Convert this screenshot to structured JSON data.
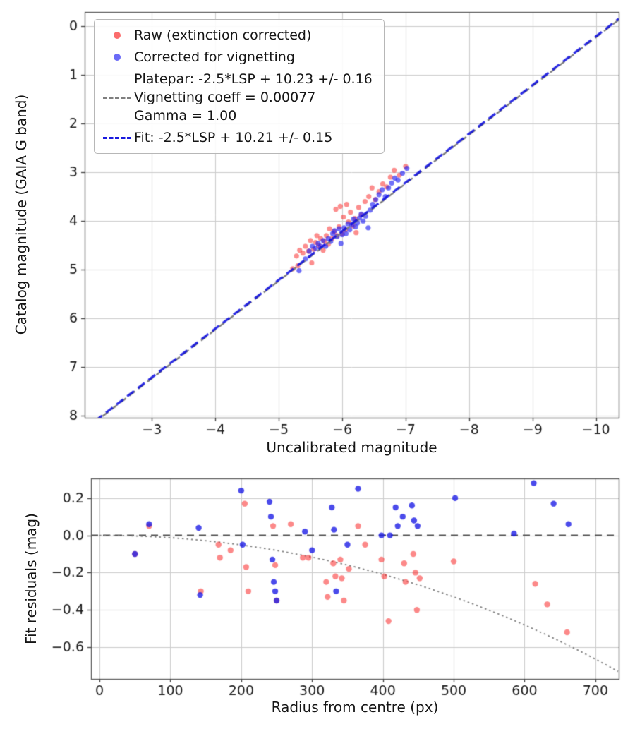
{
  "figure": {
    "background": "#ffffff",
    "grid_color": "#cccccc",
    "spine_color": "#555555",
    "tick_color": "#444444",
    "text_color": "#151515"
  },
  "chart_data": [
    {
      "type": "scatter",
      "xlabel": "Uncalibrated magnitude",
      "ylabel": "Catalog magnitude (GAIA G band)",
      "xlim": [
        -1.94,
        -10.36
      ],
      "ylim": [
        -0.29,
        8.04
      ],
      "y_inverted": true,
      "grid": true,
      "xticks": [
        -3,
        -4,
        -5,
        -6,
        -7,
        -8,
        -9,
        -10
      ],
      "xtick_labels": [
        "−3",
        "−4",
        "−5",
        "−6",
        "−7",
        "−8",
        "−9",
        "−10"
      ],
      "yticks": [
        0,
        1,
        2,
        3,
        4,
        5,
        6,
        7,
        8
      ],
      "ytick_labels": [
        "0",
        "1",
        "2",
        "3",
        "4",
        "5",
        "6",
        "7",
        "8"
      ],
      "series": [
        {
          "name": "Raw (extinction corrected)",
          "kind": "scatter",
          "color": "rgba(250,30,30,0.5)",
          "size": 3.6,
          "points": [
            [
              -5.22,
              4.98
            ],
            [
              -5.28,
              4.72
            ],
            [
              -5.3,
              4.92
            ],
            [
              -5.33,
              4.6
            ],
            [
              -5.38,
              4.66
            ],
            [
              -5.42,
              4.52
            ],
            [
              -5.47,
              4.62
            ],
            [
              -5.5,
              4.4
            ],
            [
              -5.52,
              4.86
            ],
            [
              -5.55,
              4.58
            ],
            [
              -5.58,
              4.44
            ],
            [
              -5.6,
              4.3
            ],
            [
              -5.63,
              4.5
            ],
            [
              -5.66,
              4.36
            ],
            [
              -5.7,
              4.6
            ],
            [
              -5.72,
              4.42
            ],
            [
              -5.75,
              4.3
            ],
            [
              -5.78,
              4.48
            ],
            [
              -5.8,
              4.16
            ],
            [
              -5.84,
              4.36
            ],
            [
              -5.87,
              4.22
            ],
            [
              -5.9,
              3.76
            ],
            [
              -5.92,
              4.3
            ],
            [
              -5.95,
              4.12
            ],
            [
              -5.97,
              3.7
            ],
            [
              -6.0,
              4.26
            ],
            [
              -6.02,
              3.92
            ],
            [
              -6.05,
              4.18
            ],
            [
              -6.07,
              3.66
            ],
            [
              -6.1,
              4.02
            ],
            [
              -6.13,
              3.82
            ],
            [
              -6.17,
              4.1
            ],
            [
              -6.2,
              3.95
            ],
            [
              -6.22,
              4.24
            ],
            [
              -6.26,
              3.72
            ],
            [
              -6.3,
              3.88
            ],
            [
              -6.36,
              3.6
            ],
            [
              -6.42,
              3.5
            ],
            [
              -6.47,
              3.32
            ],
            [
              -6.52,
              3.56
            ],
            [
              -6.58,
              3.4
            ],
            [
              -6.64,
              3.24
            ],
            [
              -6.7,
              3.3
            ],
            [
              -6.76,
              3.1
            ],
            [
              -6.82,
              2.96
            ],
            [
              -6.9,
              3.06
            ],
            [
              -7.0,
              2.88
            ]
          ]
        },
        {
          "name": "Corrected for vignetting",
          "kind": "scatter",
          "color": "rgba(35,35,245,0.65)",
          "size": 3.6,
          "points": [
            [
              -5.32,
              5.02
            ],
            [
              -5.42,
              4.78
            ],
            [
              -5.48,
              4.62
            ],
            [
              -5.53,
              4.52
            ],
            [
              -5.58,
              4.56
            ],
            [
              -5.62,
              4.46
            ],
            [
              -5.66,
              4.52
            ],
            [
              -5.7,
              4.4
            ],
            [
              -5.74,
              4.52
            ],
            [
              -5.78,
              4.36
            ],
            [
              -5.82,
              4.42
            ],
            [
              -5.85,
              4.26
            ],
            [
              -5.88,
              4.2
            ],
            [
              -5.92,
              4.32
            ],
            [
              -5.95,
              4.16
            ],
            [
              -5.98,
              4.46
            ],
            [
              -6.0,
              4.28
            ],
            [
              -6.03,
              4.14
            ],
            [
              -6.06,
              4.26
            ],
            [
              -6.09,
              4.06
            ],
            [
              -6.12,
              4.18
            ],
            [
              -6.15,
              4.08
            ],
            [
              -6.18,
              3.96
            ],
            [
              -6.21,
              4.12
            ],
            [
              -6.24,
              4.04
            ],
            [
              -6.27,
              3.94
            ],
            [
              -6.3,
              3.86
            ],
            [
              -6.33,
              4.0
            ],
            [
              -6.37,
              3.9
            ],
            [
              -6.41,
              4.14
            ],
            [
              -6.44,
              3.78
            ],
            [
              -6.48,
              3.66
            ],
            [
              -6.53,
              3.56
            ],
            [
              -6.58,
              3.46
            ],
            [
              -6.63,
              3.36
            ],
            [
              -6.68,
              3.5
            ],
            [
              -6.73,
              3.32
            ],
            [
              -6.78,
              3.22
            ],
            [
              -6.83,
              3.12
            ],
            [
              -6.88,
              3.16
            ],
            [
              -6.95,
              3.02
            ],
            [
              -7.02,
              2.92
            ]
          ]
        },
        {
          "name": "Platepar",
          "kind": "line",
          "style": "dashed",
          "color": "#7f7f7f",
          "slope": 1,
          "intercept": 10.23,
          "width": 2.4,
          "dash": [
            10,
            6
          ]
        },
        {
          "name": "Fit",
          "kind": "line",
          "style": "dashed",
          "color": "rgba(10,10,225,0.85)",
          "slope": 1,
          "intercept": 10.21,
          "width": 3.2,
          "dash": [
            12,
            7
          ]
        }
      ],
      "legend": {
        "position": "upper left",
        "entries": [
          {
            "marker": "dot",
            "color": "rgba(250,60,60,0.75)",
            "lines": [
              "Raw (extinction corrected)"
            ]
          },
          {
            "marker": "dot",
            "color": "rgba(70,70,245,0.8)",
            "lines": [
              "Corrected for vignetting"
            ]
          },
          {
            "marker": "dashed-line",
            "color": "#7f7f7f",
            "lines": [
              "Platepar: -2.5*LSP + 10.23 +/- 0.16",
              "Vignetting coeff = 0.00077",
              "Gamma = 1.00"
            ]
          },
          {
            "marker": "dashed-line",
            "color": "#1a1adf",
            "lines": [
              "Fit: -2.5*LSP + 10.21 +/- 0.15"
            ]
          }
        ]
      }
    },
    {
      "type": "scatter",
      "xlabel": "Radius from centre (px)",
      "ylabel": "Fit residuals (mag)",
      "xlim": [
        -12,
        733
      ],
      "ylim": [
        0.305,
        -0.77
      ],
      "grid": true,
      "xticks": [
        0,
        100,
        200,
        300,
        400,
        500,
        600,
        700
      ],
      "xtick_labels": [
        "0",
        "100",
        "200",
        "300",
        "400",
        "500",
        "600",
        "700"
      ],
      "yticks": [
        0.2,
        0.0,
        -0.2,
        -0.4,
        -0.6
      ],
      "ytick_labels": [
        "0.2",
        "0.0",
        "−0.2",
        "−0.4",
        "−0.6"
      ],
      "series": [
        {
          "name": "zero-residual-line",
          "kind": "hline",
          "style": "dashed",
          "color": "#595959",
          "y": 0,
          "width": 2.2,
          "dash": [
            10,
            7
          ]
        },
        {
          "name": "vignetting-model-curve",
          "kind": "curve",
          "style": "dotted",
          "color": "#808080",
          "formula": "2.5*log10(cos(k*r)^4)",
          "k": 0.00077,
          "width": 1.8,
          "dash": [
            2.5,
            4
          ]
        },
        {
          "name": "raw-residuals",
          "kind": "scatter",
          "color": "rgba(250,40,40,0.55)",
          "size": 4.2,
          "points": [
            [
              50,
              -0.1
            ],
            [
              70,
              0.05
            ],
            [
              143,
              -0.3
            ],
            [
              168,
              -0.05
            ],
            [
              170,
              -0.12
            ],
            [
              185,
              -0.08
            ],
            [
              205,
              0.17
            ],
            [
              207,
              -0.17
            ],
            [
              210,
              -0.3
            ],
            [
              245,
              0.05
            ],
            [
              248,
              -0.16
            ],
            [
              250,
              -0.35
            ],
            [
              270,
              0.06
            ],
            [
              287,
              -0.12
            ],
            [
              295,
              -0.12
            ],
            [
              320,
              -0.25
            ],
            [
              322,
              -0.33
            ],
            [
              330,
              -0.15
            ],
            [
              333,
              -0.22
            ],
            [
              340,
              -0.13
            ],
            [
              342,
              -0.23
            ],
            [
              345,
              -0.35
            ],
            [
              352,
              -0.18
            ],
            [
              365,
              0.05
            ],
            [
              375,
              -0.05
            ],
            [
              398,
              -0.13
            ],
            [
              402,
              -0.22
            ],
            [
              408,
              -0.46
            ],
            [
              430,
              -0.15
            ],
            [
              432,
              -0.25
            ],
            [
              443,
              -0.1
            ],
            [
              446,
              -0.2
            ],
            [
              448,
              -0.4
            ],
            [
              452,
              -0.23
            ],
            [
              500,
              -0.14
            ],
            [
              615,
              -0.26
            ],
            [
              632,
              -0.37
            ],
            [
              660,
              -0.52
            ]
          ]
        },
        {
          "name": "corrected-residuals",
          "kind": "scatter",
          "color": "rgba(30,30,230,0.8)",
          "size": 4.2,
          "points": [
            [
              50,
              -0.1
            ],
            [
              70,
              0.06
            ],
            [
              140,
              0.04
            ],
            [
              142,
              -0.32
            ],
            [
              200,
              0.24
            ],
            [
              202,
              -0.05
            ],
            [
              240,
              0.18
            ],
            [
              242,
              0.1
            ],
            [
              244,
              -0.13
            ],
            [
              246,
              -0.25
            ],
            [
              248,
              -0.3
            ],
            [
              250,
              -0.35
            ],
            [
              290,
              0.02
            ],
            [
              300,
              -0.08
            ],
            [
              328,
              0.15
            ],
            [
              331,
              0.03
            ],
            [
              334,
              -0.3
            ],
            [
              350,
              -0.05
            ],
            [
              365,
              0.25
            ],
            [
              398,
              0.0
            ],
            [
              410,
              0.0
            ],
            [
              418,
              0.15
            ],
            [
              421,
              0.05
            ],
            [
              428,
              0.1
            ],
            [
              441,
              0.16
            ],
            [
              444,
              0.08
            ],
            [
              449,
              0.05
            ],
            [
              502,
              0.2
            ],
            [
              585,
              0.01
            ],
            [
              613,
              0.28
            ],
            [
              641,
              0.17
            ],
            [
              662,
              0.06
            ]
          ]
        }
      ]
    }
  ]
}
